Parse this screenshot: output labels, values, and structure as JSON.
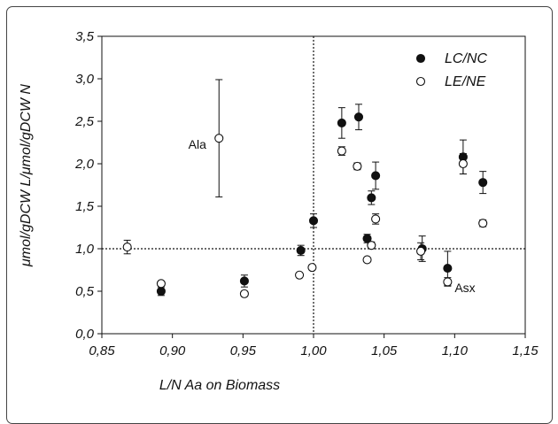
{
  "chart_data": {
    "type": "scatter",
    "xlabel": "L/N Aa on Biomass",
    "ylabel": "μmol/gDCW L/μmol/gDCW N",
    "xlim": [
      0.85,
      1.15
    ],
    "ylim": [
      0.0,
      3.5
    ],
    "x_ticks": [
      "0,85",
      "0,90",
      "0,95",
      "1,00",
      "1,05",
      "1,10",
      "1,15"
    ],
    "y_ticks": [
      "0,0",
      "0,5",
      "1,0",
      "1,5",
      "2,0",
      "2,5",
      "3,0",
      "3,5"
    ],
    "reference_lines": {
      "x": 1.0,
      "y": 1.0
    },
    "grid": false,
    "legend_position": "top-right",
    "series": [
      {
        "name": "LC/NC",
        "marker": "filled-circle",
        "color": "#111111",
        "points": [
          {
            "x": 0.892,
            "y": 0.5,
            "err": 0.05
          },
          {
            "x": 0.951,
            "y": 0.62,
            "err": 0.07
          },
          {
            "x": 0.991,
            "y": 0.98,
            "err": 0.06
          },
          {
            "x": 1.0,
            "y": 1.33,
            "err": 0.08
          },
          {
            "x": 1.02,
            "y": 2.48,
            "err": 0.18
          },
          {
            "x": 1.032,
            "y": 2.55,
            "err": 0.15
          },
          {
            "x": 1.038,
            "y": 1.12,
            "err": 0.05
          },
          {
            "x": 1.041,
            "y": 1.6,
            "err": 0.08
          },
          {
            "x": 1.044,
            "y": 1.86,
            "err": 0.16
          },
          {
            "x": 1.077,
            "y": 1.0,
            "err": 0.15
          },
          {
            "x": 1.095,
            "y": 0.77,
            "err": 0.2
          },
          {
            "x": 1.106,
            "y": 2.08,
            "err": 0.2
          },
          {
            "x": 1.12,
            "y": 1.78,
            "err": 0.13
          }
        ]
      },
      {
        "name": "LE/NE",
        "marker": "open-circle",
        "color": "#111111",
        "points": [
          {
            "x": 0.868,
            "y": 1.02,
            "err": 0.08
          },
          {
            "x": 0.892,
            "y": 0.59,
            "err": 0.02
          },
          {
            "x": 0.933,
            "y": 2.3,
            "err": 0.69
          },
          {
            "x": 0.951,
            "y": 0.47,
            "err": 0.02
          },
          {
            "x": 0.99,
            "y": 0.69,
            "err": 0.02
          },
          {
            "x": 0.999,
            "y": 0.78,
            "err": 0.02
          },
          {
            "x": 1.02,
            "y": 2.15,
            "err": 0.05
          },
          {
            "x": 1.031,
            "y": 1.97,
            "err": 0.04
          },
          {
            "x": 1.038,
            "y": 0.87,
            "err": 0.02
          },
          {
            "x": 1.041,
            "y": 1.04,
            "err": 0.04
          },
          {
            "x": 1.044,
            "y": 1.35,
            "err": 0.06
          },
          {
            "x": 1.076,
            "y": 0.97,
            "err": 0.1
          },
          {
            "x": 1.095,
            "y": 0.61,
            "err": 0.05
          },
          {
            "x": 1.106,
            "y": 2.0,
            "err": 0.12
          },
          {
            "x": 1.12,
            "y": 1.3,
            "err": 0.04
          }
        ]
      }
    ],
    "annotations": [
      {
        "text": "Ala",
        "x": 0.924,
        "y": 2.23
      },
      {
        "text": "Asx",
        "x": 1.1,
        "y": 0.54
      }
    ]
  }
}
